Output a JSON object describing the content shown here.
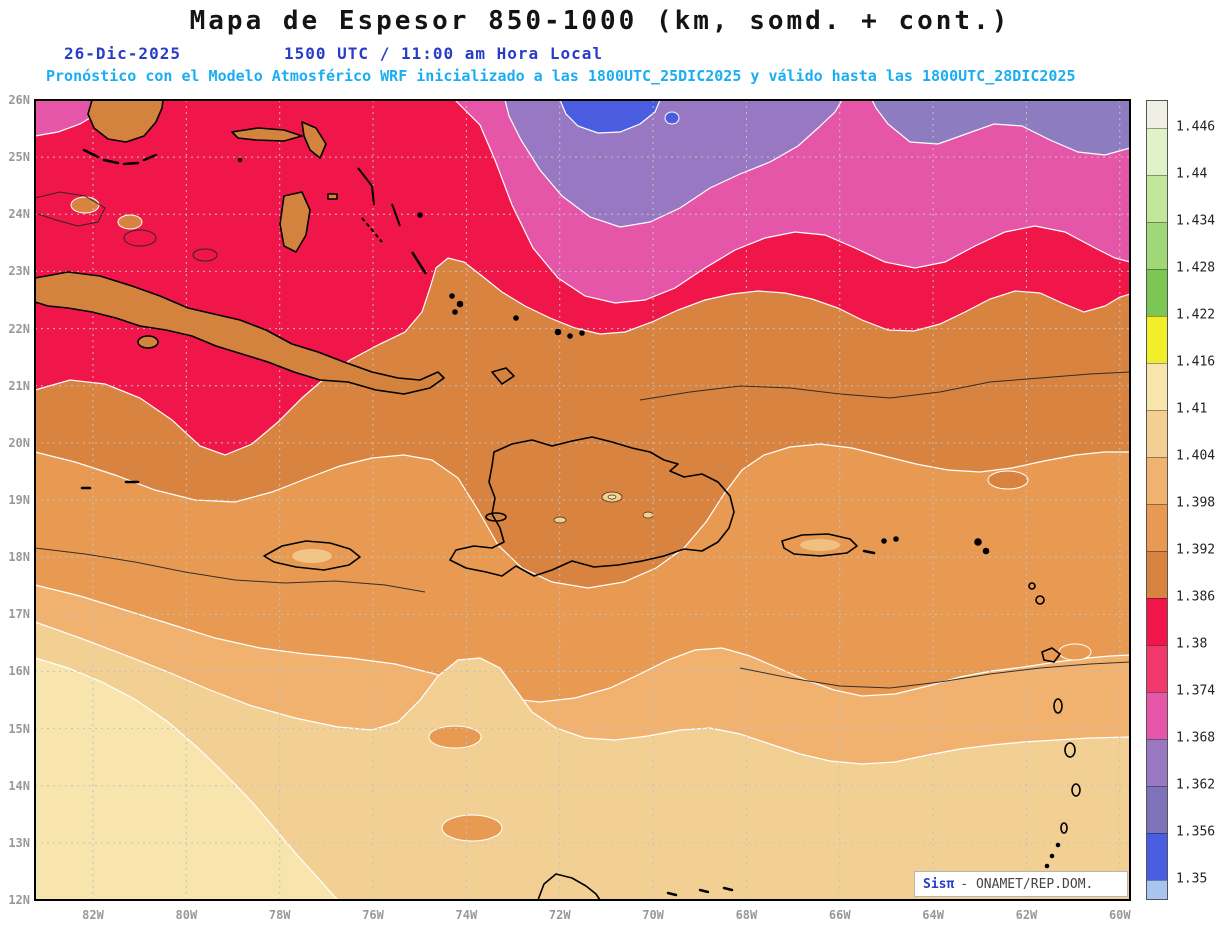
{
  "header": {
    "title": "Mapa de Espesor 850-1000 (km, somd. + cont.)",
    "date": "26-Dic-2025",
    "time": "1500 UTC / 11:00 am Hora Local",
    "forecast": "Pronóstico con el Modelo Atmosférico WRF inicializado a las 1800UTC_25DIC2025 y válido hasta las  1800UTC_28DIC2025"
  },
  "map": {
    "lat_labels": [
      "26N",
      "25N",
      "24N",
      "23N",
      "22N",
      "21N",
      "20N",
      "19N",
      "18N",
      "17N",
      "16N",
      "15N",
      "14N",
      "13N",
      "12N"
    ],
    "lon_labels": [
      "82W",
      "80W",
      "78W",
      "76W",
      "74W",
      "72W",
      "70W",
      "68W",
      "66W",
      "64W",
      "62W",
      "60W"
    ]
  },
  "colorbar": {
    "values": [
      "1.446",
      "1.44",
      "1.434",
      "1.428",
      "1.422",
      "1.416",
      "1.41",
      "1.404",
      "1.398",
      "1.392",
      "1.386",
      "1.38",
      "1.374",
      "1.368",
      "1.362",
      "1.356",
      "1.35"
    ],
    "colors": [
      "#f0efe6",
      "#dff2c8",
      "#c2e79c",
      "#a0d878",
      "#7cc653",
      "#f2ef2a",
      "#f7e5ad",
      "#f2d093",
      "#f0b26e",
      "#e89a52",
      "#d8833f",
      "#f0164a",
      "#f0386b",
      "#e656a8",
      "#9878c2",
      "#7e72b8",
      "#4a5ce0",
      "#a8c4f0"
    ]
  },
  "branding": {
    "app": "Sisπ",
    "org": "- ONAMET/REP.DOM."
  },
  "chart_data": {
    "type": "heatmap",
    "title": "Mapa de Espesor 850-1000 (km, somd. + cont.)",
    "variable": "Espesor 850-1000",
    "units": "km",
    "lat_ticks": [
      "26N",
      "25N",
      "24N",
      "23N",
      "22N",
      "21N",
      "20N",
      "19N",
      "18N",
      "17N",
      "16N",
      "15N",
      "14N",
      "13N",
      "12N"
    ],
    "lon_ticks": [
      "82W",
      "80W",
      "78W",
      "76W",
      "74W",
      "72W",
      "70W",
      "68W",
      "66W",
      "64W",
      "62W",
      "60W"
    ],
    "levels": [
      1.35,
      1.356,
      1.362,
      1.368,
      1.374,
      1.38,
      1.386,
      1.392,
      1.398,
      1.404,
      1.41,
      1.416,
      1.422,
      1.428,
      1.434,
      1.44,
      1.446
    ],
    "palette_low_to_high": [
      "#a8c4f0",
      "#4a5ce0",
      "#7e72b8",
      "#9878c2",
      "#e656a8",
      "#f0386b",
      "#f0164a",
      "#d8833f",
      "#e89a52",
      "#f0b26e",
      "#f2d093",
      "#f7e5ad",
      "#f2ef2a",
      "#7cc653",
      "#a0d878",
      "#c2e79c",
      "#dff2c8",
      "#f0efe6"
    ],
    "orientation": "thickness values decrease northward; lowest band (blue, ~1.35 km) at top center, highest bands (pale tan, ~1.41 km) at bottom left",
    "legend_position": "right"
  }
}
